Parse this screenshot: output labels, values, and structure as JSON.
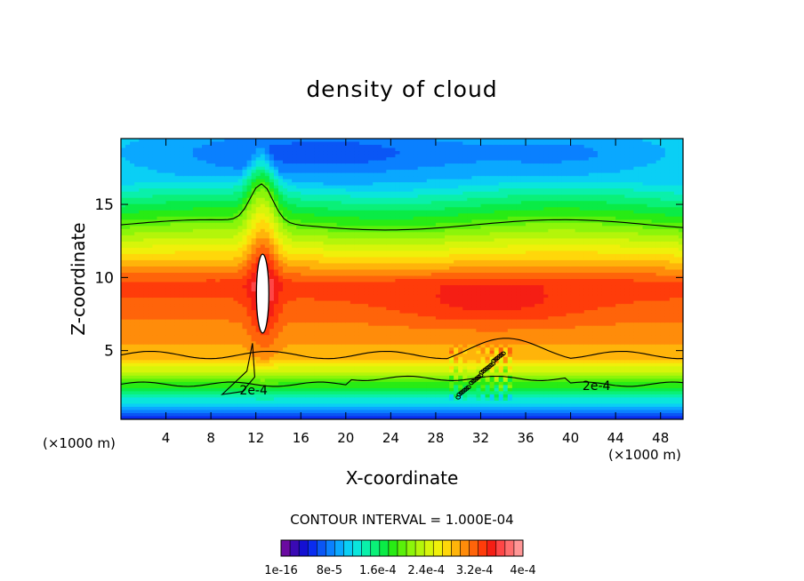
{
  "chart_data": {
    "type": "heatmap",
    "title": "density of cloud",
    "xlabel": "X-coordinate",
    "ylabel": "Z-coordinate",
    "x_unit_label_left": "(×1000 m)",
    "x_unit_label_right": "(×1000 m)",
    "xlim": [
      0,
      50
    ],
    "ylim": [
      0.3,
      19.5
    ],
    "x_ticks": [
      4,
      8,
      12,
      16,
      20,
      24,
      28,
      32,
      36,
      40,
      44,
      48
    ],
    "y_ticks": [
      5,
      10,
      15
    ],
    "grid": false,
    "contour_interval_text": "CONTOUR INTERVAL = 1.000E-04",
    "contour_labels": [
      {
        "text": "2e-4",
        "x": 11.8,
        "z": 2.3
      },
      {
        "text": "2e-4",
        "x": 42.3,
        "z": 2.6
      }
    ],
    "colorbar": {
      "colors": [
        "#6a0aa0",
        "#3a0ab4",
        "#1410d2",
        "#0a2cf0",
        "#0a56f5",
        "#0a80ff",
        "#0aa8ff",
        "#0acff5",
        "#0ae6dc",
        "#0af0aa",
        "#0af078",
        "#0aeb46",
        "#28eb14",
        "#5af00a",
        "#8cf50a",
        "#b4f50a",
        "#d7f50a",
        "#f0f00a",
        "#ffd70a",
        "#ffb40a",
        "#ff8c0a",
        "#ff640a",
        "#ff3c0a",
        "#f51e14",
        "#ff4646",
        "#ff6e6e",
        "#ff9696"
      ],
      "tick_labels": [
        "1e-16",
        "8e-5",
        "1.6e-4",
        "2.4e-4",
        "3.2e-4",
        "4e-4"
      ]
    }
  }
}
